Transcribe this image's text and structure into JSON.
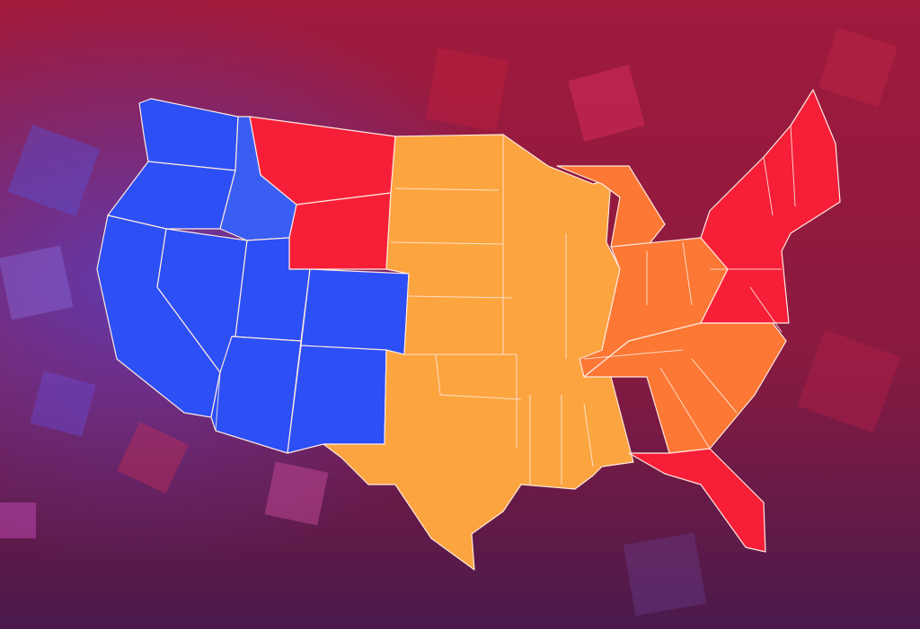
{
  "map": {
    "fills": [
      "#2c4ff6",
      "#3a5df2",
      "#f71f38",
      "#fca43f",
      "#fc7834"
    ]
  }
}
